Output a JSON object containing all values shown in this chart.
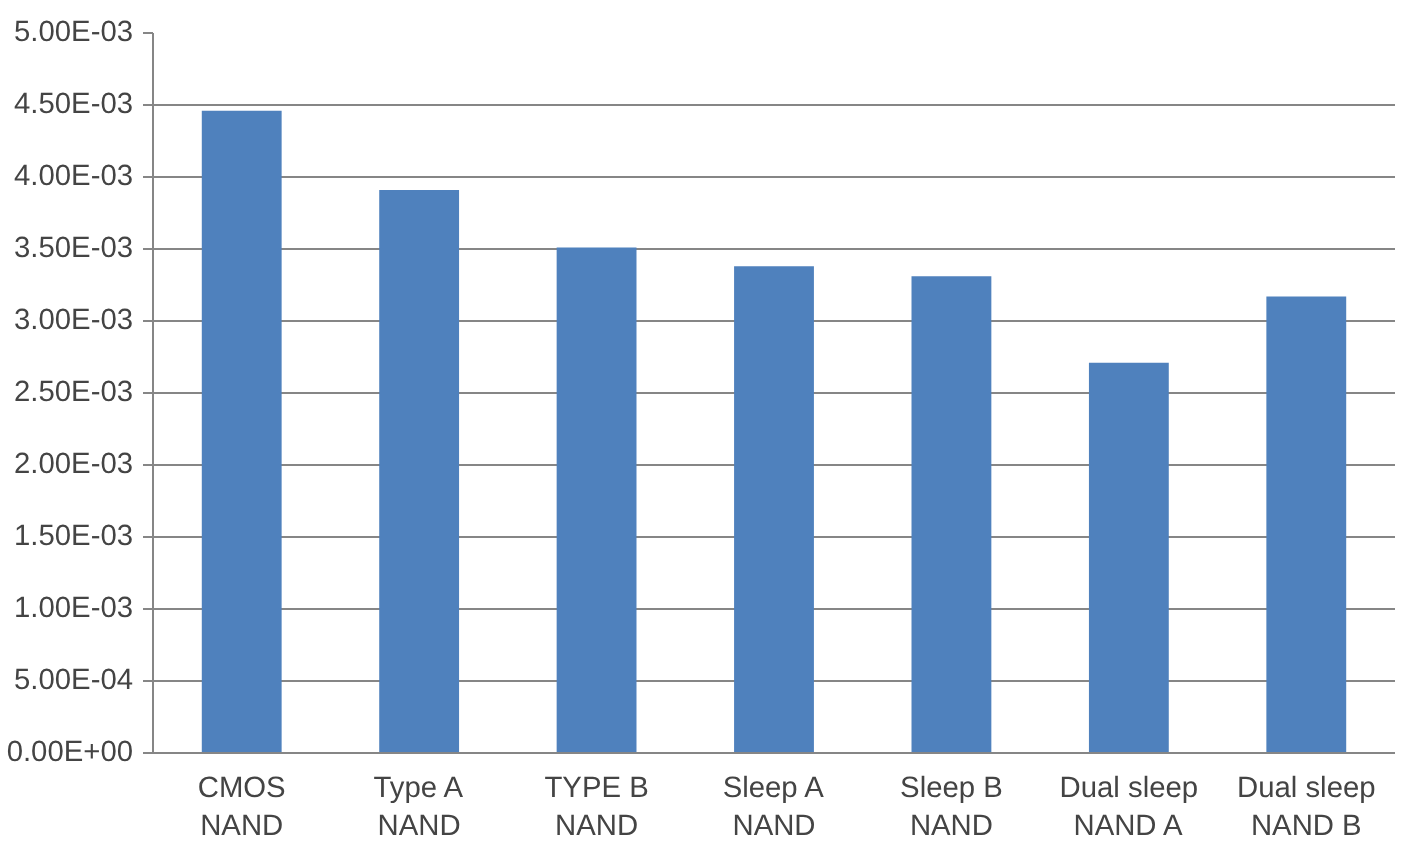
{
  "chart_data": {
    "type": "bar",
    "categories": [
      "CMOS\nNAND",
      "Type A\nNAND",
      "TYPE B\nNAND",
      "Sleep A\nNAND",
      "Sleep B\nNAND",
      "Dual sleep\nNAND A",
      "Dual sleep\nNAND B"
    ],
    "series": [
      {
        "color": "#4f81bd",
        "values": [
          0.00446,
          0.00391,
          0.00351,
          0.00338,
          0.00331,
          0.00271,
          0.00317
        ]
      }
    ],
    "ylim": [
      0,
      0.005
    ],
    "yticks": [
      {
        "value": 0,
        "label": "0.00E+00"
      },
      {
        "value": 0.0005,
        "label": "5.00E-04"
      },
      {
        "value": 0.001,
        "label": "1.00E-03"
      },
      {
        "value": 0.0015,
        "label": "1.50E-03"
      },
      {
        "value": 0.002,
        "label": "2.00E-03"
      },
      {
        "value": 0.0025,
        "label": "2.50E-03"
      },
      {
        "value": 0.003,
        "label": "3.00E-03"
      },
      {
        "value": 0.0035,
        "label": "3.50E-03"
      },
      {
        "value": 0.004,
        "label": "4.00E-03"
      },
      {
        "value": 0.0045,
        "label": "4.50E-03"
      },
      {
        "value": 0.005,
        "label": "5.00E-03"
      }
    ],
    "grid": "y"
  }
}
